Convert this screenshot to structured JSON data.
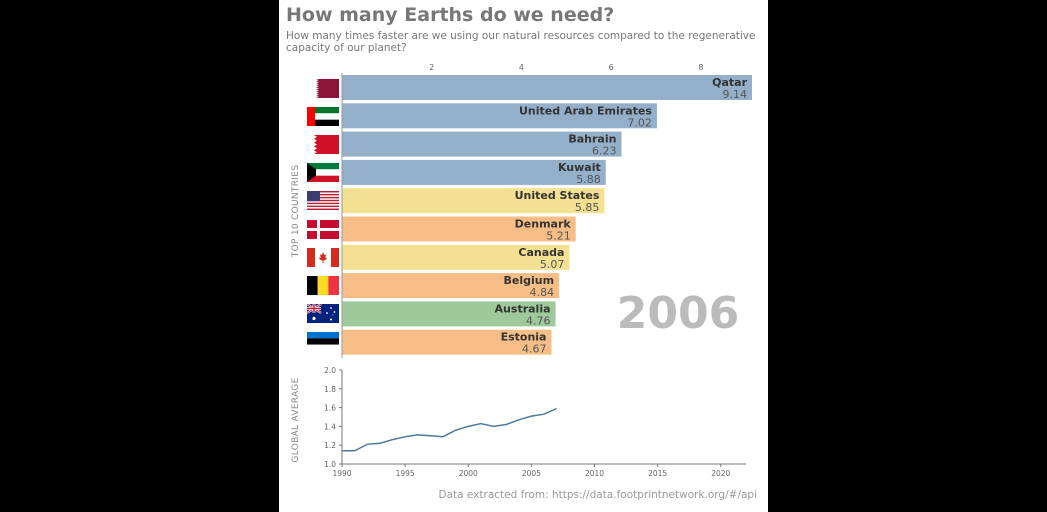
{
  "title": "How many Earths do we need?",
  "subtitle": "How many times faster are we using our natural resources compared to the regenerative capacity of our planet?",
  "source": "Data extracted from: https://data.footprintnetwork.org/#/api",
  "colors": {
    "west_asia": "#94afc9",
    "north_america": "#f3e091",
    "europe": "#f6be86",
    "oceania": "#9dc99b",
    "year_label": "#bbbbbb",
    "line": "#4e7aa0"
  },
  "chart_data": [
    {
      "type": "bar",
      "orientation": "horizontal",
      "year": "2006",
      "ylabel": "TOP 10 COUNTRIES",
      "x_ticks": [
        2,
        4,
        6,
        8
      ],
      "xlim": [
        0,
        9.14
      ],
      "categories": [
        "Qatar",
        "United Arab Emirates",
        "Bahrain",
        "Kuwait",
        "United States",
        "Denmark",
        "Canada",
        "Belgium",
        "Australia",
        "Estonia"
      ],
      "values": [
        9.14,
        7.02,
        6.23,
        5.88,
        5.85,
        5.21,
        5.07,
        4.84,
        4.76,
        4.67
      ],
      "value_labels": [
        "9.14",
        "7.02",
        "6.23",
        "5.88",
        "5.85",
        "5.21",
        "5.07",
        "4.84",
        "4.76",
        "4.67"
      ],
      "bar_colors": [
        "#94afc9",
        "#94afc9",
        "#94afc9",
        "#94afc9",
        "#f3e091",
        "#f6be86",
        "#f3e091",
        "#f6be86",
        "#9dc99b",
        "#f6be86"
      ],
      "flags": [
        "qatar-flag",
        "uae-flag",
        "bahrain-flag",
        "kuwait-flag",
        "usa-flag",
        "denmark-flag",
        "canada-flag",
        "belgium-flag",
        "australia-flag",
        "estonia-flag"
      ]
    },
    {
      "type": "line",
      "ylabel": "GLOBAL AVERAGE",
      "xlim": [
        1990,
        2022
      ],
      "ylim": [
        1.0,
        2.0
      ],
      "x_ticks": [
        1990,
        1995,
        2000,
        2005,
        2010,
        2015,
        2020
      ],
      "y_ticks": [
        "1.0",
        "1.2",
        "1.4",
        "1.6",
        "1.8",
        "2.0"
      ],
      "series": [
        {
          "x": [
            1990,
            1991,
            1992,
            1993,
            1994,
            1995,
            1996,
            1997,
            1998,
            1999,
            2000,
            2001,
            2002,
            2003,
            2004,
            2005,
            2006,
            2007
          ],
          "y": [
            1.14,
            1.14,
            1.21,
            1.22,
            1.26,
            1.29,
            1.31,
            1.3,
            1.29,
            1.36,
            1.4,
            1.43,
            1.4,
            1.42,
            1.47,
            1.51,
            1.53,
            1.59
          ]
        }
      ]
    }
  ]
}
